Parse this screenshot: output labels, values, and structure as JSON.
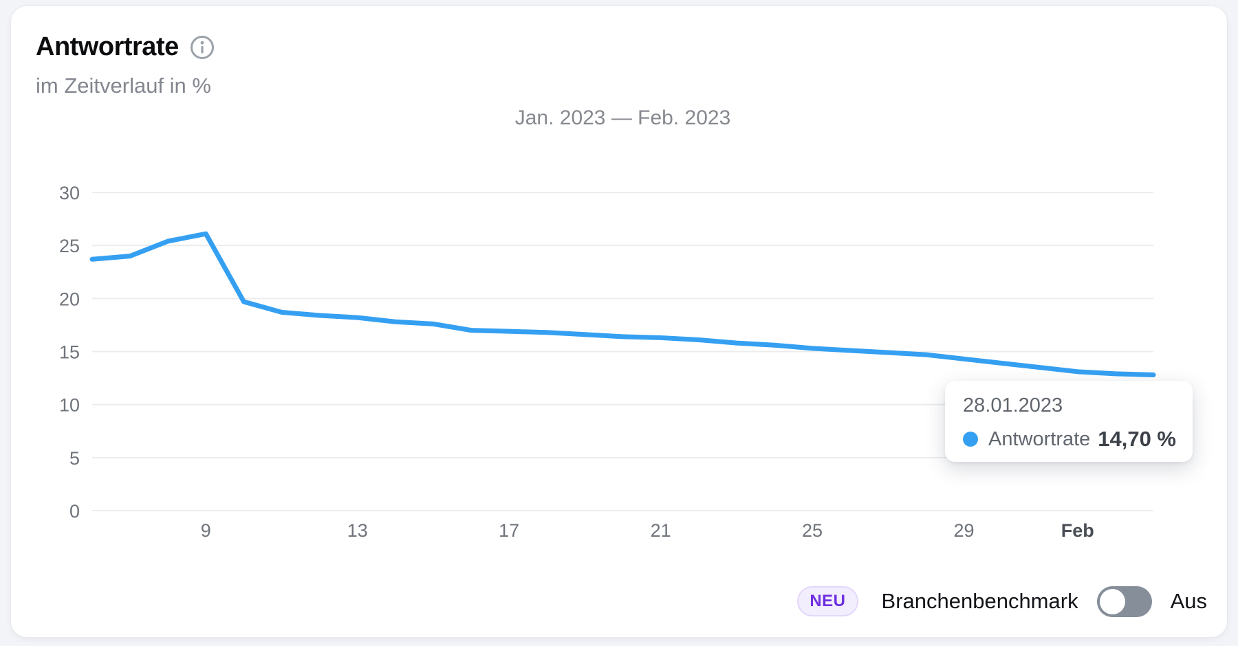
{
  "header": {
    "title": "Antwortrate",
    "subtitle": "im Zeitverlauf in %"
  },
  "chart_data": {
    "type": "line",
    "title": "Jan. 2023 — Feb. 2023",
    "ylim": [
      0,
      30
    ],
    "yticks": [
      0,
      5,
      10,
      15,
      20,
      25,
      30
    ],
    "grid": true,
    "legend_position": "none",
    "line_color": "#35a0f2",
    "xticks": [
      {
        "label": "9",
        "index": 3,
        "bold": false
      },
      {
        "label": "13",
        "index": 7,
        "bold": false
      },
      {
        "label": "17",
        "index": 11,
        "bold": false
      },
      {
        "label": "21",
        "index": 15,
        "bold": false
      },
      {
        "label": "25",
        "index": 19,
        "bold": false
      },
      {
        "label": "29",
        "index": 23,
        "bold": false
      },
      {
        "label": "Feb",
        "index": 26,
        "bold": true
      }
    ],
    "series": [
      {
        "name": "Antwortrate",
        "color": "#35a0f2",
        "points": [
          {
            "date": "06.01.2023",
            "value": 23.7
          },
          {
            "date": "07.01.2023",
            "value": 24.0
          },
          {
            "date": "08.01.2023",
            "value": 25.4
          },
          {
            "date": "09.01.2023",
            "value": 26.1
          },
          {
            "date": "10.01.2023",
            "value": 19.7
          },
          {
            "date": "11.01.2023",
            "value": 18.7
          },
          {
            "date": "12.01.2023",
            "value": 18.4
          },
          {
            "date": "13.01.2023",
            "value": 18.2
          },
          {
            "date": "14.01.2023",
            "value": 17.8
          },
          {
            "date": "15.01.2023",
            "value": 17.6
          },
          {
            "date": "16.01.2023",
            "value": 17.0
          },
          {
            "date": "17.01.2023",
            "value": 16.9
          },
          {
            "date": "18.01.2023",
            "value": 16.8
          },
          {
            "date": "19.01.2023",
            "value": 16.6
          },
          {
            "date": "20.01.2023",
            "value": 16.4
          },
          {
            "date": "21.01.2023",
            "value": 16.3
          },
          {
            "date": "22.01.2023",
            "value": 16.1
          },
          {
            "date": "23.01.2023",
            "value": 15.8
          },
          {
            "date": "24.01.2023",
            "value": 15.6
          },
          {
            "date": "25.01.2023",
            "value": 15.3
          },
          {
            "date": "26.01.2023",
            "value": 15.1
          },
          {
            "date": "27.01.2023",
            "value": 14.9
          },
          {
            "date": "28.01.2023",
            "value": 14.7
          },
          {
            "date": "29.01.2023",
            "value": 14.3
          },
          {
            "date": "30.01.2023",
            "value": 13.9
          },
          {
            "date": "31.01.2023",
            "value": 13.5
          },
          {
            "date": "01.02.2023",
            "value": 13.1
          },
          {
            "date": "02.02.2023",
            "value": 12.9
          },
          {
            "date": "03.02.2023",
            "value": 12.8
          }
        ]
      }
    ]
  },
  "tooltip": {
    "date": "28.01.2023",
    "series": "Antwortrate",
    "value": "14,70 %",
    "dot_color": "#35a0f2"
  },
  "footer": {
    "badge": "NEU",
    "badge_text_color": "#6d2fe0",
    "badge_bg_color": "#f3eefd",
    "benchmark_label": "Branchenbenchmark",
    "toggle_state": "Aus",
    "toggle_on": false
  }
}
